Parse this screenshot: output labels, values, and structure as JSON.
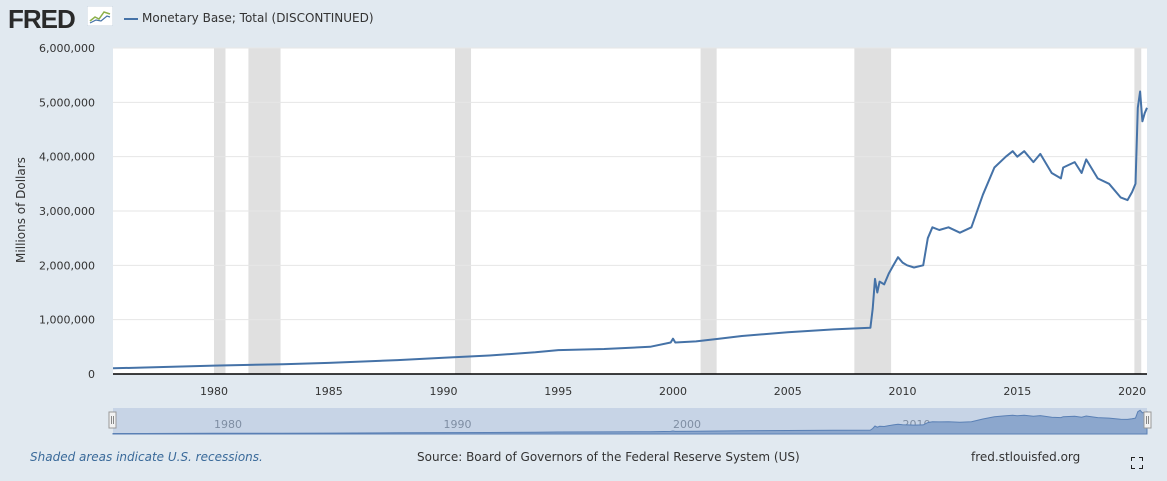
{
  "header": {
    "logo_text": "FRED",
    "legend_label": "Monetary Base; Total (DISCONTINUED)"
  },
  "footer": {
    "recession_note": "Shaded areas indicate U.S. recessions.",
    "source": "Source: Board of Governors of the Federal Reserve System (US)",
    "site": "fred.stlouisfed.org"
  },
  "colors": {
    "series": "#4572a7",
    "recession": "#e0e0e0",
    "navigator_fill": "#8ca7cd",
    "navigator_bg": "#c7d4e6"
  },
  "icons": {
    "logo_graph": "fred-graph-icon",
    "fullscreen": "fullscreen-icon",
    "handles": "navigator-handle-icon"
  },
  "chart_data": {
    "type": "line",
    "title": "",
    "xlabel": "",
    "ylabel": "Millions of Dollars",
    "xlim": [
      1975.6,
      2020.65
    ],
    "ylim": [
      0,
      6000000
    ],
    "yticks": [
      {
        "v": 0,
        "label": "0"
      },
      {
        "v": 1000000,
        "label": "1,000,000"
      },
      {
        "v": 2000000,
        "label": "2,000,000"
      },
      {
        "v": 3000000,
        "label": "3,000,000"
      },
      {
        "v": 4000000,
        "label": "4,000,000"
      },
      {
        "v": 5000000,
        "label": "5,000,000"
      },
      {
        "v": 6000000,
        "label": "6,000,000"
      }
    ],
    "xticks": [
      {
        "v": 1980,
        "label": "1980"
      },
      {
        "v": 1985,
        "label": "1985"
      },
      {
        "v": 1990,
        "label": "1990"
      },
      {
        "v": 1995,
        "label": "1995"
      },
      {
        "v": 2000,
        "label": "2000"
      },
      {
        "v": 2005,
        "label": "2005"
      },
      {
        "v": 2010,
        "label": "2010"
      },
      {
        "v": 2015,
        "label": "2015"
      },
      {
        "v": 2020,
        "label": "2020"
      }
    ],
    "navigator_labels": [
      {
        "v": 1980,
        "label": "1980"
      },
      {
        "v": 1990,
        "label": "1990"
      },
      {
        "v": 2000,
        "label": "2000"
      },
      {
        "v": 2010,
        "label": "2010"
      }
    ],
    "recessions": [
      [
        1980.0,
        1980.5
      ],
      [
        1981.5,
        1982.9
      ],
      [
        1990.5,
        1991.2
      ],
      [
        2001.2,
        2001.9
      ],
      [
        2007.9,
        2009.5
      ],
      [
        2020.1,
        2020.4
      ]
    ],
    "grid": true,
    "legend": "top-left",
    "series": [
      {
        "name": "Monetary Base; Total (DISCONTINUED)",
        "x": [
          1975.6,
          1977,
          1980,
          1983,
          1985,
          1988,
          1990,
          1992,
          1994,
          1995,
          1997,
          1999,
          1999.9,
          2000,
          2000.1,
          2001,
          2002,
          2003,
          2005,
          2007,
          2008.6,
          2008.7,
          2008.8,
          2008.9,
          2009.0,
          2009.2,
          2009.4,
          2009.6,
          2009.8,
          2010.0,
          2010.2,
          2010.5,
          2010.9,
          2011.1,
          2011.3,
          2011.6,
          2012.0,
          2012.5,
          2013.0,
          2013.5,
          2014.0,
          2014.5,
          2014.8,
          2015.0,
          2015.3,
          2015.7,
          2016.0,
          2016.5,
          2016.9,
          2017.0,
          2017.5,
          2017.8,
          2018.0,
          2018.5,
          2019.0,
          2019.5,
          2019.8,
          2020.0,
          2020.15,
          2020.25,
          2020.35,
          2020.45,
          2020.55,
          2020.65
        ],
        "values": [
          105000,
          120000,
          155000,
          180000,
          205000,
          255000,
          300000,
          340000,
          400000,
          440000,
          460000,
          500000,
          580000,
          650000,
          580000,
          600000,
          650000,
          700000,
          770000,
          820000,
          850000,
          1200000,
          1750000,
          1500000,
          1700000,
          1650000,
          1850000,
          2000000,
          2150000,
          2050000,
          2000000,
          1960000,
          2000000,
          2500000,
          2700000,
          2650000,
          2700000,
          2600000,
          2700000,
          3300000,
          3800000,
          4000000,
          4100000,
          4000000,
          4100000,
          3900000,
          4050000,
          3700000,
          3600000,
          3800000,
          3900000,
          3700000,
          3950000,
          3600000,
          3500000,
          3250000,
          3200000,
          3350000,
          3500000,
          4900000,
          5200000,
          4650000,
          4800000,
          4900000
        ]
      }
    ]
  }
}
